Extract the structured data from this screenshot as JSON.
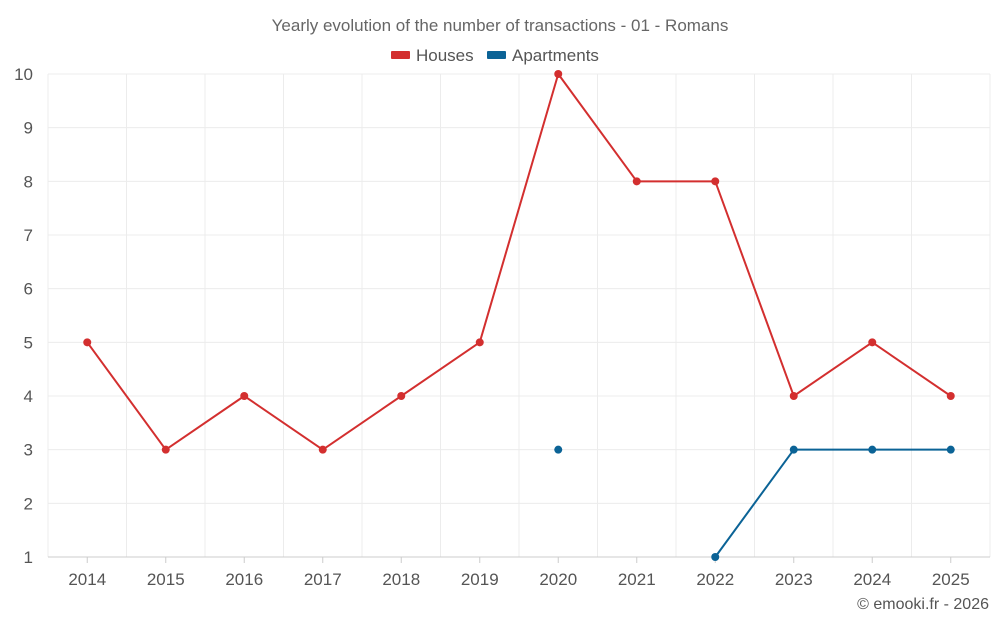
{
  "chart_data": {
    "type": "line",
    "title": "Yearly evolution of the number of transactions - 01 - Romans",
    "xlabel": "",
    "ylabel": "",
    "categories": [
      "2014",
      "2015",
      "2016",
      "2017",
      "2018",
      "2019",
      "2020",
      "2021",
      "2022",
      "2023",
      "2024",
      "2025"
    ],
    "ylim": [
      1,
      10
    ],
    "yticks": [
      1,
      2,
      3,
      4,
      5,
      6,
      7,
      8,
      9,
      10
    ],
    "grid": true,
    "legend_position": "top-center",
    "series": [
      {
        "name": "Houses",
        "color": "#d32f2f",
        "values": [
          5,
          3,
          4,
          3,
          4,
          5,
          10,
          8,
          8,
          4,
          5,
          4
        ]
      },
      {
        "name": "Apartments",
        "color": "#0b6396",
        "values": [
          null,
          null,
          null,
          null,
          null,
          null,
          3,
          null,
          1,
          3,
          3,
          3
        ]
      }
    ]
  },
  "credit": "© emooki.fr - 2026"
}
